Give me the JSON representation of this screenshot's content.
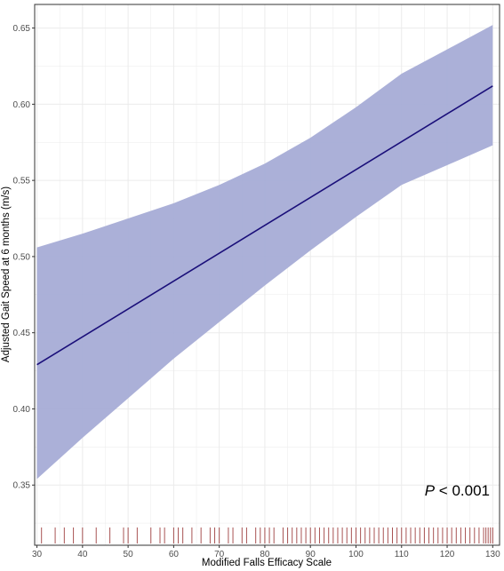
{
  "chart_data": {
    "type": "line",
    "title": "",
    "xlabel": "Modified Falls Efficacy Scale",
    "ylabel": "Adjusted Gait Speed at 6 months (m/s)",
    "xlim": [
      29.5,
      131.5
    ],
    "ylim": [
      0.3105,
      0.6655
    ],
    "x_ticks": [
      30,
      40,
      50,
      60,
      70,
      80,
      90,
      100,
      110,
      120,
      130
    ],
    "y_ticks": [
      0.35,
      0.4,
      0.45,
      0.5,
      0.55,
      0.6,
      0.65
    ],
    "y_tick_labels": [
      "0.35",
      "0.40",
      "0.45",
      "0.50",
      "0.55",
      "0.60",
      "0.65"
    ],
    "grid": true,
    "series": [
      {
        "type": "line",
        "x": [
          30,
          130
        ],
        "y": [
          0.429,
          0.612
        ]
      }
    ],
    "confidence_band": {
      "x": [
        30,
        40,
        50,
        60,
        70,
        80,
        90,
        100,
        110,
        120,
        130
      ],
      "lower": [
        0.354,
        0.381,
        0.407,
        0.433,
        0.457,
        0.481,
        0.504,
        0.526,
        0.547,
        0.56,
        0.573
      ],
      "upper": [
        0.506,
        0.515,
        0.525,
        0.535,
        0.547,
        0.561,
        0.578,
        0.598,
        0.62,
        0.636,
        0.652
      ]
    },
    "rug_x": [
      31,
      34,
      36,
      38,
      40,
      43,
      46,
      49,
      50,
      52,
      55,
      57,
      58,
      60,
      61,
      62,
      64,
      66,
      68,
      69,
      70,
      72,
      73,
      75,
      76,
      78,
      79,
      80,
      81,
      82,
      84,
      85,
      86,
      87,
      88,
      89,
      90,
      91,
      92,
      93,
      94,
      95,
      96,
      97,
      98,
      99,
      100,
      101,
      102,
      103,
      104,
      105,
      106,
      107,
      108,
      109,
      110,
      111,
      112,
      113,
      114,
      115,
      116,
      117,
      118,
      119,
      120,
      121,
      122,
      123,
      124,
      125,
      126,
      127,
      128,
      128.5,
      129,
      129.5,
      130
    ],
    "annotation": {
      "italic": "P",
      "text": " < 0.001"
    },
    "colors": {
      "band": "#a7acd6",
      "line": "#1a0f7a",
      "rug": "#8b1a1a",
      "grid": "#ebebeb",
      "axis": "#333333"
    }
  }
}
